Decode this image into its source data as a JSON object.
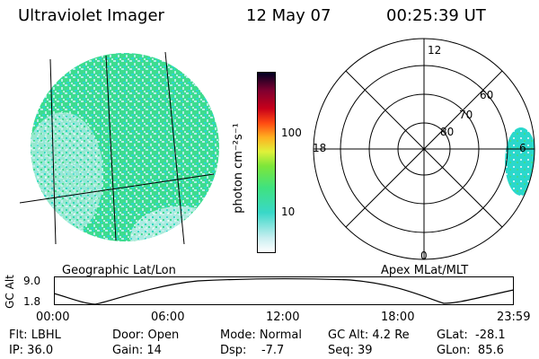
{
  "header": {
    "instrument": "Ultraviolet Imager",
    "date": "12 May 07",
    "time": "00:25:39 UT"
  },
  "colorbar": {
    "unit_label": "photon cm⁻²s⁻¹",
    "ticks": [
      "100",
      "10"
    ]
  },
  "left_panel": {
    "label": "Geographic Lat/Lon"
  },
  "right_panel": {
    "label": "Apex MLat/MLT",
    "mlt_labels": {
      "top": "12",
      "left": "18",
      "right": "6",
      "bottom": "0"
    },
    "lat_labels": [
      "60",
      "70",
      "80"
    ]
  },
  "altitude_plot": {
    "axis_label": "GC Alt",
    "y_ticks": [
      "9.0",
      "1.8"
    ],
    "x_ticks": [
      "00:00",
      "06:00",
      "12:00",
      "18:00",
      "23:59"
    ]
  },
  "info": {
    "filter": "Flt: LBHL",
    "ip": "IP: 36.0",
    "door": "Door: Open",
    "gain": "Gain: 14",
    "mode": "Mode: Normal",
    "dsp": "Dsp:    -7.7",
    "gc_alt": "GC Alt: 4.2 Re",
    "seq": "Seq: 39",
    "glat": "GLat:  -28.1",
    "glon": "GLon:  85.6"
  },
  "colors": {
    "emission_base": "#3ddc8e",
    "emission_low": "#b4ece8",
    "emission_cyan": "#2ad8cc",
    "colorbar": [
      "#ffffff",
      "#c8eef0",
      "#39d8c8",
      "#3fe27f",
      "#7de63a",
      "#dff13a",
      "#ffb020",
      "#ff4a12",
      "#c8001a",
      "#800030",
      "#000020"
    ]
  }
}
